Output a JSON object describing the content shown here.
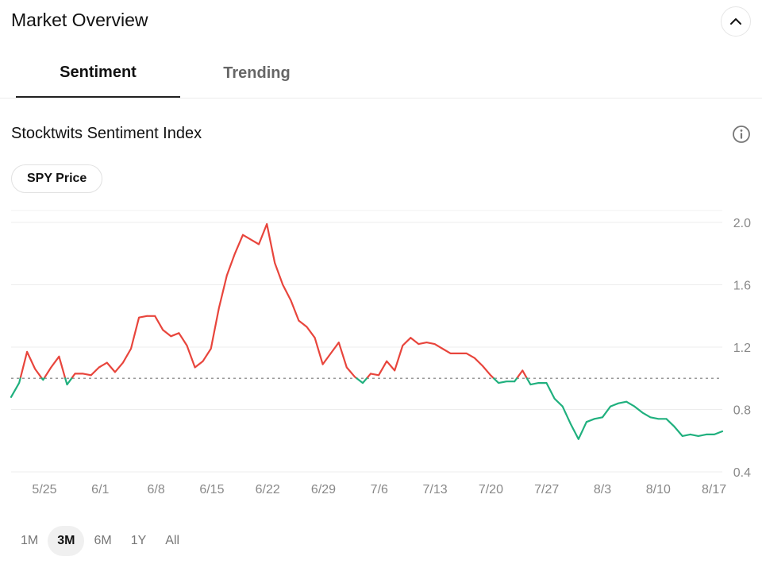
{
  "header": {
    "title": "Market Overview"
  },
  "tabs": [
    {
      "label": "Sentiment",
      "active": true
    },
    {
      "label": "Trending",
      "active": false
    }
  ],
  "section": {
    "title": "Stocktwits Sentiment Index"
  },
  "pill": {
    "label": "SPY Price"
  },
  "icons": {
    "collapse": "chevron-up-icon",
    "info": "info-icon"
  },
  "colors": {
    "above_baseline": "#e8453c",
    "below_baseline": "#20b07e",
    "baseline": "#9a9a9a"
  },
  "chart_data": {
    "type": "line",
    "x_tick_labels": [
      "5/25",
      "6/1",
      "6/8",
      "6/15",
      "6/22",
      "6/29",
      "7/6",
      "7/13",
      "7/20",
      "7/27",
      "8/3",
      "8/10",
      "8/17"
    ],
    "y_tick_labels": [
      "2.0",
      "1.6",
      "1.2",
      "0.8",
      "0.4"
    ],
    "ylim": [
      0.4,
      2.0
    ],
    "baseline": 1.0,
    "series": [
      {
        "values": [
          0.88,
          0.97,
          1.17,
          1.06,
          0.99,
          1.07,
          1.14,
          0.96,
          1.03,
          1.03,
          1.02,
          1.07,
          1.1,
          1.04,
          1.1,
          1.19,
          1.39,
          1.4,
          1.4,
          1.31,
          1.27,
          1.29,
          1.21,
          1.07,
          1.11,
          1.19,
          1.45,
          1.66,
          1.8,
          1.92,
          1.89,
          1.86,
          1.99,
          1.74,
          1.6,
          1.5,
          1.37,
          1.33,
          1.26,
          1.09,
          1.16,
          1.23,
          1.07,
          1.01,
          0.97,
          1.03,
          1.02,
          1.11,
          1.05,
          1.21,
          1.26,
          1.22,
          1.23,
          1.22,
          1.19,
          1.16,
          1.16,
          1.16,
          1.13,
          1.08,
          1.02,
          0.97,
          0.98,
          0.98,
          1.05,
          0.96,
          0.97,
          0.97,
          0.87,
          0.82,
          0.71,
          0.61,
          0.72,
          0.74,
          0.75,
          0.82,
          0.84,
          0.85,
          0.82,
          0.78,
          0.75,
          0.74,
          0.74,
          0.69,
          0.63,
          0.64,
          0.63,
          0.64,
          0.64,
          0.66
        ]
      }
    ]
  },
  "ranges": [
    {
      "label": "1M",
      "active": false
    },
    {
      "label": "3M",
      "active": true
    },
    {
      "label": "6M",
      "active": false
    },
    {
      "label": "1Y",
      "active": false
    },
    {
      "label": "All",
      "active": false
    }
  ]
}
